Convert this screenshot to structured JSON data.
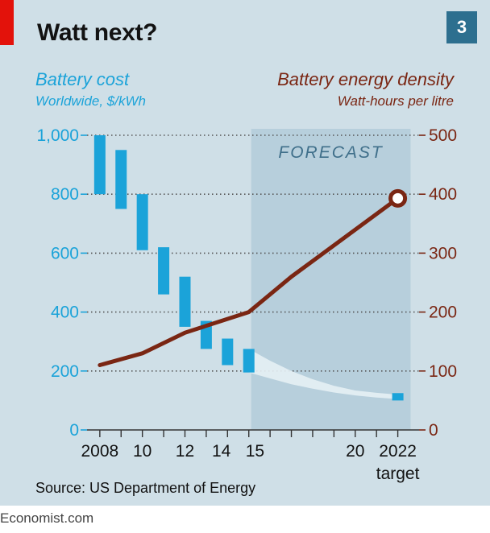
{
  "header": {
    "title": "Watt next?",
    "badge": "3"
  },
  "source": "Source: US Department of Energy",
  "credit": "Economist.com",
  "colors": {
    "cost": "#1ba3d9",
    "density": "#7a2613",
    "forecast_band": "#b7cfdc",
    "brand_red": "#e3120b"
  },
  "chart_data": {
    "type": "bar+line",
    "title": "Watt next?",
    "forecast_label": "FORECAST",
    "forecast_range": [
      2015,
      2022.6
    ],
    "x_ticks": [
      {
        "x": 2008,
        "label": "2008"
      },
      {
        "x": 2010,
        "label": "10"
      },
      {
        "x": 2012,
        "label": "12"
      },
      {
        "x": 2014,
        "label": "14"
      },
      {
        "x": 2015,
        "label": "15"
      },
      {
        "x": 2020,
        "label": "20"
      },
      {
        "x": 2022,
        "label": "2022"
      }
    ],
    "x_extra_label": "target",
    "x_range": [
      2007.4,
      2023
    ],
    "left_axis": {
      "label": "Battery cost",
      "sublabel": "Worldwide, $/kWh",
      "range": [
        0,
        1000
      ],
      "ticks": [
        0,
        200,
        400,
        600,
        800,
        1000
      ],
      "tick_labels": [
        "0",
        "200",
        "400",
        "600",
        "800",
        "1,000"
      ]
    },
    "right_axis": {
      "label": "Battery energy density",
      "sublabel": "Watt-hours per litre",
      "range": [
        0,
        500
      ],
      "ticks": [
        0,
        100,
        200,
        300,
        400,
        500
      ],
      "tick_labels": [
        "0",
        "100",
        "200",
        "300",
        "400",
        "500"
      ]
    },
    "cost_ranges": [
      {
        "x": 2008,
        "low": 800,
        "high": 1000
      },
      {
        "x": 2009,
        "low": 750,
        "high": 950
      },
      {
        "x": 2010,
        "low": 610,
        "high": 800
      },
      {
        "x": 2011,
        "low": 460,
        "high": 620
      },
      {
        "x": 2012,
        "low": 350,
        "high": 520
      },
      {
        "x": 2013,
        "low": 275,
        "high": 370
      },
      {
        "x": 2014,
        "low": 220,
        "high": 310
      },
      {
        "x": 2015,
        "low": 195,
        "high": 275
      },
      {
        "x": 2022,
        "low": 100,
        "high": 125
      }
    ],
    "cost_forecast_band": [
      {
        "x": 2015,
        "low": 195,
        "high": 275
      },
      {
        "x": 2016,
        "low": 175,
        "high": 235
      },
      {
        "x": 2017,
        "low": 155,
        "high": 200
      },
      {
        "x": 2018,
        "low": 140,
        "high": 172
      },
      {
        "x": 2019,
        "low": 127,
        "high": 150
      },
      {
        "x": 2020,
        "low": 117,
        "high": 134
      },
      {
        "x": 2021,
        "low": 110,
        "high": 126
      },
      {
        "x": 2022,
        "low": 105,
        "high": 120
      }
    ],
    "density": [
      {
        "x": 2008,
        "y": 110
      },
      {
        "x": 2010,
        "y": 130
      },
      {
        "x": 2012,
        "y": 165
      },
      {
        "x": 2015,
        "y": 200
      },
      {
        "x": 2017,
        "y": 260
      },
      {
        "x": 2022,
        "y": 393
      }
    ],
    "density_target": {
      "x": 2022,
      "y": 393
    }
  }
}
